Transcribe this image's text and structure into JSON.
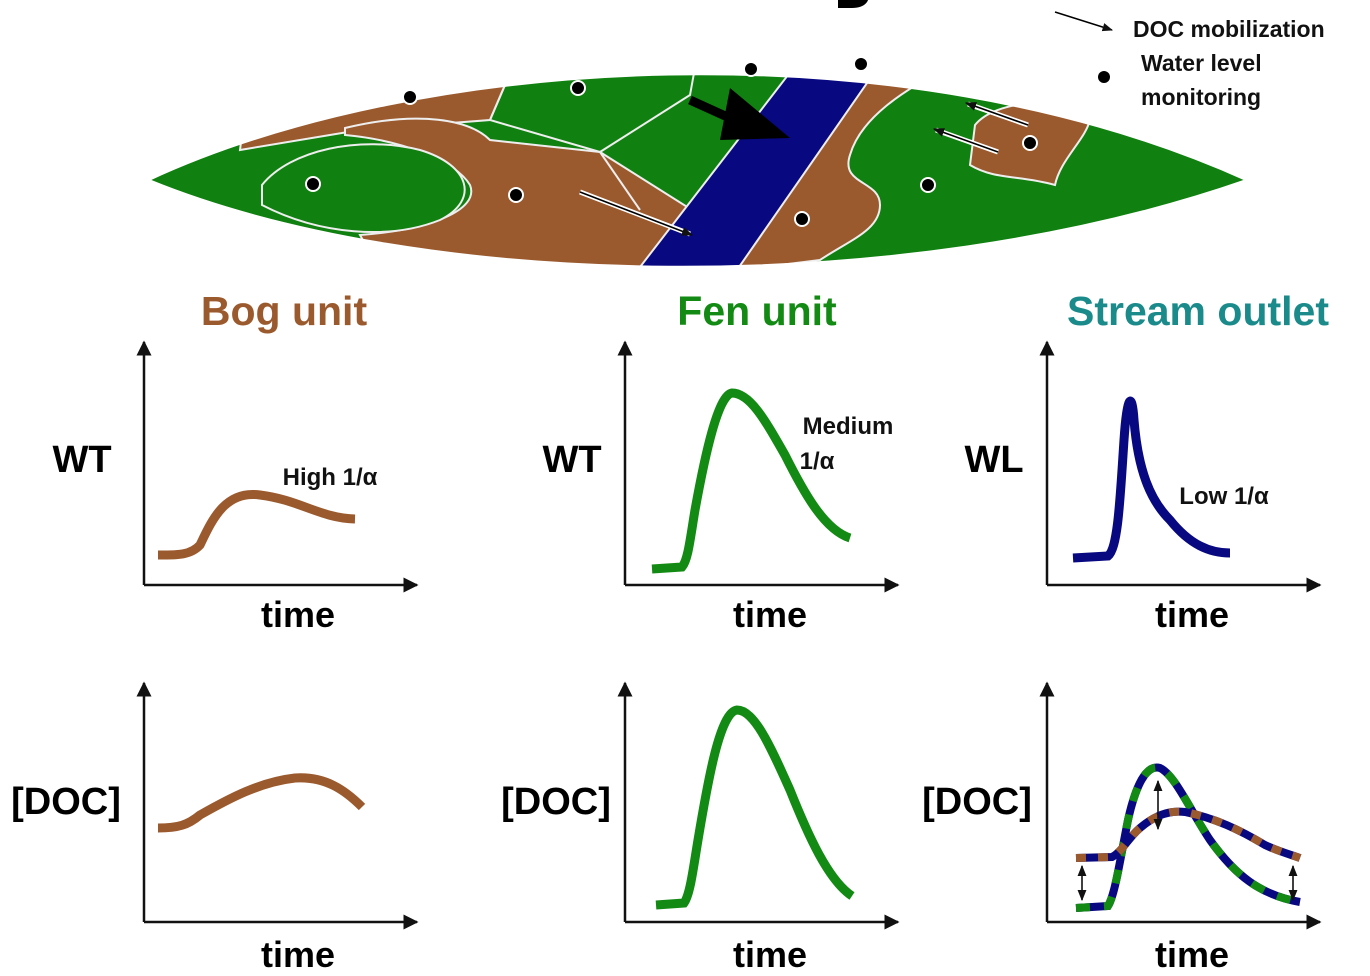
{
  "legend": {
    "arrow_label": "DOC mobilization",
    "dot_label_line1": "Water level",
    "dot_label_line2": "monitoring"
  },
  "colors": {
    "bog": "#9b5a2e",
    "fen": "#138a13",
    "stream": "#080880",
    "stream_title": "#1a8a8a",
    "map_green": "#108010"
  },
  "columns": [
    {
      "title": "Bog unit",
      "top_ylabel": "WT",
      "bottom_ylabel": "[DOC]",
      "xlabel_top": "time",
      "xlabel_bottom": "time",
      "annotation_line1": "High 1/α",
      "annotation_line2": ""
    },
    {
      "title": "Fen unit",
      "top_ylabel": "WT",
      "bottom_ylabel": "[DOC]",
      "xlabel_top": "time",
      "xlabel_bottom": "time",
      "annotation_line1": "Medium",
      "annotation_line2": "1/α"
    },
    {
      "title": "Stream outlet",
      "top_ylabel": "WL",
      "bottom_ylabel": "[DOC]",
      "xlabel_top": "time",
      "xlabel_bottom": "time",
      "annotation_line1": "Low 1/α",
      "annotation_line2": ""
    }
  ]
}
